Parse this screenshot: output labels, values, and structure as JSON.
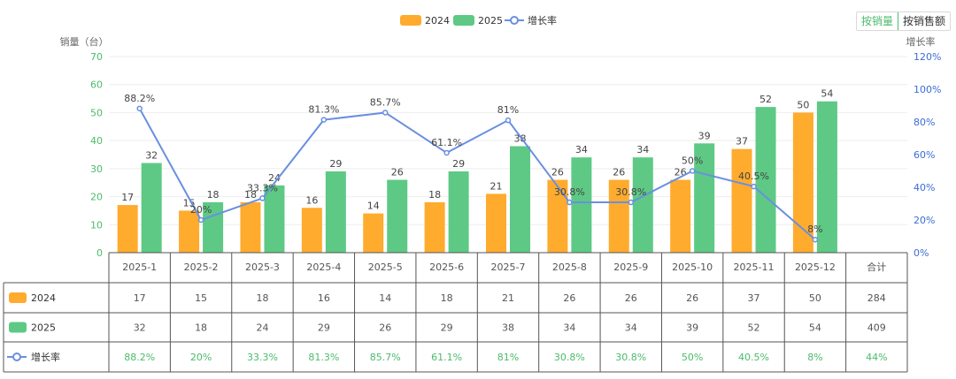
{
  "legend": [
    {
      "name": "2024",
      "color": "#FFAB2E",
      "kind": "bar"
    },
    {
      "name": "2025",
      "color": "#5DC985",
      "kind": "bar"
    },
    {
      "name": "增长率",
      "color": "#6A8FE0",
      "kind": "line"
    }
  ],
  "toggle": {
    "by_qty": "按销量",
    "by_amount": "按销售额",
    "active": "by_qty"
  },
  "chart_data": {
    "type": "bar",
    "categories": [
      "2025-1",
      "2025-2",
      "2025-3",
      "2025-4",
      "2025-5",
      "2025-6",
      "2025-7",
      "2025-8",
      "2025-9",
      "2025-10",
      "2025-11",
      "2025-12"
    ],
    "series": [
      {
        "name": "2024",
        "values": [
          17,
          15,
          18,
          16,
          14,
          18,
          21,
          26,
          26,
          26,
          37,
          50
        ]
      },
      {
        "name": "2025",
        "values": [
          32,
          18,
          24,
          29,
          26,
          29,
          38,
          34,
          34,
          39,
          52,
          54
        ]
      },
      {
        "name": "增长率",
        "type": "line",
        "axis": "right",
        "values": [
          88.2,
          20,
          33.3,
          81.3,
          85.7,
          61.1,
          81,
          30.8,
          30.8,
          50,
          40.5,
          8
        ],
        "labels": [
          "88.2%",
          "20%",
          "33.3%",
          "81.3%",
          "85.7%",
          "61.1%",
          "81%",
          "30.8%",
          "30.8%",
          "50%",
          "40.5%",
          "8%"
        ]
      }
    ],
    "ylabel": "销量（台）",
    "ylim": [
      0,
      70
    ],
    "yticks": [
      0,
      10,
      20,
      30,
      40,
      50,
      60,
      70
    ],
    "y2label": "增长率",
    "y2lim": [
      0,
      120
    ],
    "y2ticks": [
      "0%",
      "20%",
      "40%",
      "60%",
      "80%",
      "100%",
      "120%"
    ],
    "grid": true,
    "legend_position": "top-center"
  },
  "table": {
    "total_header": "合计",
    "rows": [
      {
        "name": "2024",
        "values": [
          "17",
          "15",
          "18",
          "16",
          "14",
          "18",
          "21",
          "26",
          "26",
          "26",
          "37",
          "50"
        ],
        "total": "284"
      },
      {
        "name": "2025",
        "values": [
          "32",
          "18",
          "24",
          "29",
          "26",
          "29",
          "38",
          "34",
          "34",
          "39",
          "52",
          "54"
        ],
        "total": "409"
      },
      {
        "name": "增长率",
        "values": [
          "88.2%",
          "20%",
          "33.3%",
          "81.3%",
          "85.7%",
          "61.1%",
          "81%",
          "30.8%",
          "30.8%",
          "50%",
          "40.5%",
          "8%"
        ],
        "total": "44%"
      }
    ],
    "rate_color": "#4cbb6c"
  },
  "colors": {
    "left_axis": "#4cbb6c",
    "right_axis": "#3b6cd8",
    "grid": "#eeeeee",
    "table_border": "#555555"
  }
}
